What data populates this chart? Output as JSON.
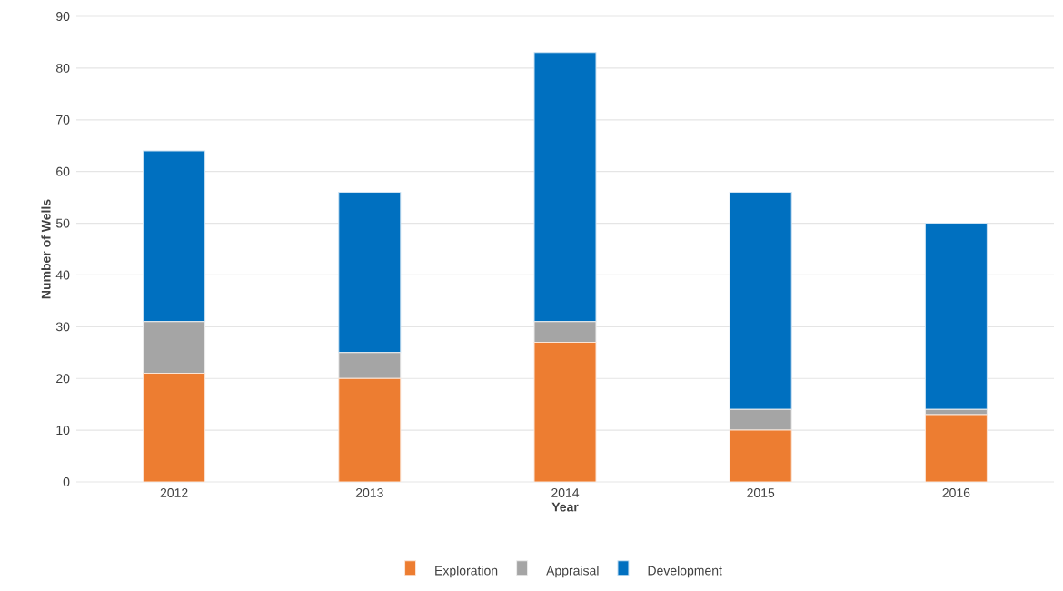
{
  "chart_data": {
    "type": "bar",
    "stacked": true,
    "xlabel": "Year",
    "ylabel": "Number of Wells",
    "categories": [
      "2012",
      "2013",
      "2014",
      "2015",
      "2016"
    ],
    "series": [
      {
        "name": "Exploration",
        "color": "#ed7d31",
        "values": [
          21,
          20,
          27,
          10,
          13
        ]
      },
      {
        "name": "Appraisal",
        "color": "#a5a5a5",
        "values": [
          10,
          5,
          4,
          4,
          1
        ]
      },
      {
        "name": "Development",
        "color": "#0070c0",
        "values": [
          33,
          31,
          52,
          42,
          36
        ]
      }
    ],
    "ylim": [
      0,
      90
    ],
    "yticks": [
      0,
      10,
      20,
      30,
      40,
      50,
      60,
      70,
      80,
      90
    ],
    "grid": "y",
    "legend": "bottom"
  }
}
